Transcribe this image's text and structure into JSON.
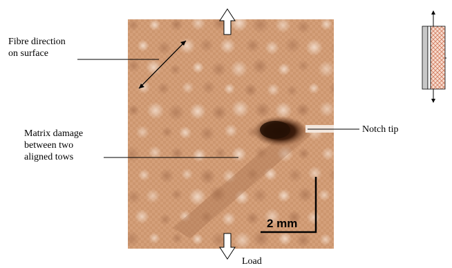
{
  "annotations": {
    "fibre_direction": "Fibre direction\non surface",
    "matrix_damage": "Matrix damage\nbetween two\naligned tows",
    "notch_tip": "Notch tip",
    "load": "Load"
  },
  "scale_bar": {
    "label": "2 mm"
  },
  "colors": {
    "specimen_base": "#d7a17b",
    "specimen_light": "#f0d8c6",
    "specimen_dark": "#b37d5a",
    "damage": "#2f1608",
    "notch": "#f2e3d8"
  },
  "icons": {
    "load_arrow": "hollow-arrow-icon",
    "specimen_schematic": "specimen-section-icon"
  }
}
